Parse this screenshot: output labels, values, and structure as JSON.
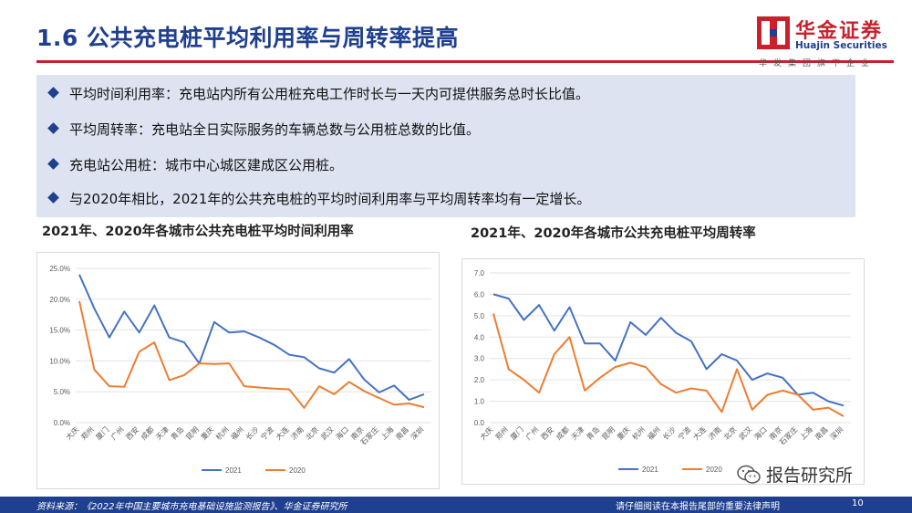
{
  "page": {
    "title": "1.6 公共充电桩平均利用率与周转率提高",
    "logo": {
      "cn": "华金证券",
      "en": "Huajin Securities",
      "sub": "华发集团旗下企业"
    },
    "bullets": [
      "平均时间利用率：充电站内所有公用桩充电工作时长与一天内可提供服务总时长比值。",
      "平均周转率：充电站全日实际服务的车辆总数与公用桩总数的比值。",
      "充电站公用桩：城市中心城区建成区公用桩。",
      "与2020年相比，2021年的公共充电桩的平均时间利用率与平均周转率均有一定增长。"
    ],
    "footer": {
      "source": "资料来源：《2022年中国主要城市充电基础设施监测报告》、华金证券研究所",
      "disclaimer": "请仔细阅读在本报告尾部的重要法律声明",
      "page_number": "10"
    },
    "watermark": "报告研究所",
    "colors": {
      "brand_blue": "#1f3f8f",
      "brand_red": "#c9202b",
      "series_2021": "#4472c4",
      "series_2020": "#ed7d31",
      "panel_bg": "#dde3f1"
    }
  },
  "chart_data": [
    {
      "type": "line",
      "title": "2021年、2020年各城市公共充电桩平均时间利用率",
      "categories": [
        "大庆",
        "郑州",
        "厦门",
        "广州",
        "西安",
        "成都",
        "天津",
        "青岛",
        "昆明",
        "重庆",
        "杭州",
        "福州",
        "长沙",
        "宁波",
        "大连",
        "济南",
        "北京",
        "武汉",
        "海口",
        "南京",
        "石家庄",
        "上海",
        "南昌",
        "深圳"
      ],
      "y_ticks": [
        "0.0%",
        "5.0%",
        "10.0%",
        "15.0%",
        "20.0%",
        "25.0%"
      ],
      "ylim": [
        0,
        25
      ],
      "grid": true,
      "legend": "bottom",
      "series": [
        {
          "name": "2021",
          "color": "#4472c4",
          "values": [
            24.0,
            18.5,
            13.8,
            18.0,
            14.6,
            19.0,
            13.8,
            13.0,
            9.6,
            16.3,
            14.6,
            14.8,
            13.8,
            12.6,
            11.0,
            10.6,
            8.8,
            8.1,
            10.3,
            7.0,
            4.9,
            6.0,
            3.7,
            4.6
          ]
        },
        {
          "name": "2020",
          "color": "#ed7d31",
          "values": [
            19.7,
            8.6,
            5.9,
            5.8,
            11.5,
            13.0,
            6.9,
            7.7,
            9.6,
            9.5,
            9.6,
            5.9,
            5.7,
            5.5,
            5.4,
            2.4,
            5.9,
            4.6,
            6.6,
            5.1,
            4.0,
            2.9,
            3.1,
            2.5
          ]
        }
      ]
    },
    {
      "type": "line",
      "title": "2021年、2020年各城市公共充电桩平均周转率",
      "categories": [
        "大庆",
        "郑州",
        "厦门",
        "广州",
        "西安",
        "成都",
        "天津",
        "青岛",
        "昆明",
        "重庆",
        "杭州",
        "福州",
        "长沙",
        "宁波",
        "大连",
        "济南",
        "北京",
        "武汉",
        "海口",
        "南京",
        "石家庄",
        "上海",
        "南昌",
        "深圳"
      ],
      "y_ticks": [
        "0.0",
        "1.0",
        "2.0",
        "3.0",
        "4.0",
        "5.0",
        "6.0",
        "7.0"
      ],
      "ylim": [
        0,
        7
      ],
      "grid": true,
      "legend": "bottom",
      "series": [
        {
          "name": "2021",
          "color": "#4472c4",
          "values": [
            6.0,
            5.8,
            4.8,
            5.5,
            4.3,
            5.4,
            3.7,
            3.7,
            2.9,
            4.7,
            4.1,
            4.9,
            4.2,
            3.8,
            2.5,
            3.2,
            2.9,
            2.0,
            2.3,
            2.1,
            1.3,
            1.4,
            1.0,
            0.8
          ]
        },
        {
          "name": "2020",
          "color": "#ed7d31",
          "values": [
            5.1,
            2.5,
            2.0,
            1.4,
            3.2,
            4.0,
            1.5,
            2.1,
            2.6,
            2.8,
            2.6,
            1.8,
            1.4,
            1.6,
            1.5,
            0.5,
            2.5,
            0.6,
            1.3,
            1.5,
            1.3,
            0.6,
            0.7,
            0.3
          ]
        }
      ]
    }
  ]
}
